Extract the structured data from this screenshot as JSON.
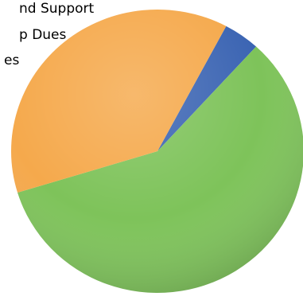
{
  "chart_data": {
    "type": "pie",
    "title": "",
    "legend_position": "top-left",
    "legend_entries": [
      "nd Support",
      "p Dues",
      "es"
    ],
    "slices": [
      {
        "key": "blue",
        "value": 4.0,
        "color": "#3c65b3"
      },
      {
        "key": "green",
        "value": 58.5,
        "color": "#7ec35a"
      },
      {
        "key": "orange",
        "value": 37.5,
        "color": "#f5a94c"
      }
    ]
  }
}
